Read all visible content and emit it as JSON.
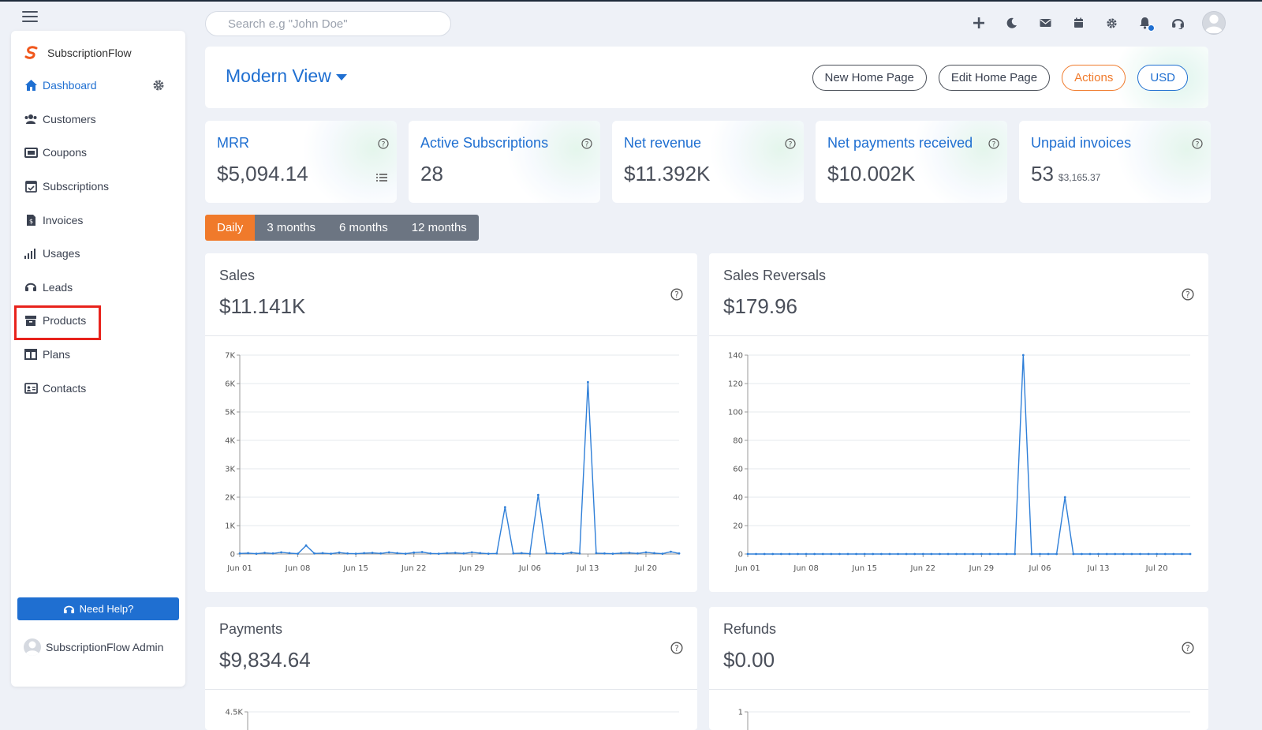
{
  "search": {
    "placeholder": "Search e.g \"John Doe\""
  },
  "top_icons": [
    "plus-icon",
    "moon-icon",
    "mail-icon",
    "calendar-icon",
    "gear-icon",
    "bell-icon",
    "headset-icon",
    "user-avatar"
  ],
  "sidebar": {
    "brand": "SubscriptionFlow",
    "items": [
      {
        "label": "Dashboard",
        "icon": "home-icon",
        "active": true
      },
      {
        "label": "Customers",
        "icon": "users-icon"
      },
      {
        "label": "Coupons",
        "icon": "ticket-icon"
      },
      {
        "label": "Subscriptions",
        "icon": "calendar-check-icon"
      },
      {
        "label": "Invoices",
        "icon": "invoice-icon"
      },
      {
        "label": "Usages",
        "icon": "signal-icon"
      },
      {
        "label": "Leads",
        "icon": "headset-icon"
      },
      {
        "label": "Products",
        "icon": "archive-icon",
        "highlighted": true
      },
      {
        "label": "Plans",
        "icon": "columns-icon"
      },
      {
        "label": "Contacts",
        "icon": "contact-card-icon"
      }
    ],
    "help_label": "Need Help?",
    "admin_label": "SubscriptionFlow Admin"
  },
  "header": {
    "view_title": "Modern View",
    "buttons": [
      "New Home Page",
      "Edit Home Page",
      "Actions",
      "USD"
    ]
  },
  "kpis": [
    {
      "title": "MRR",
      "value": "$5,094.14",
      "sub": ""
    },
    {
      "title": "Active Subscriptions",
      "value": "28",
      "sub": ""
    },
    {
      "title": "Net revenue",
      "value": "$11.392K",
      "sub": ""
    },
    {
      "title": "Net payments received",
      "value": "$10.002K",
      "sub": ""
    },
    {
      "title": "Unpaid invoices",
      "value": "53",
      "sub": "$3,165.37"
    }
  ],
  "ranges": [
    "Daily",
    "3 months",
    "6 months",
    "12 months"
  ],
  "cards": {
    "sales": {
      "title": "Sales",
      "value": "$11.141K"
    },
    "reversals": {
      "title": "Sales Reversals",
      "value": "$179.96"
    },
    "payments": {
      "title": "Payments",
      "value": "$9,834.64"
    },
    "refunds": {
      "title": "Refunds",
      "value": "$0.00"
    }
  },
  "colors": {
    "accent": "#1f6fd1",
    "orange": "#f07a2b",
    "highlight": "#e8231c"
  },
  "chart_data": [
    {
      "type": "line",
      "x_ticks": [
        "Jun 01",
        "Jun 08",
        "Jun 15",
        "Jun 22",
        "Jun 29",
        "Jul 06",
        "Jul 13",
        "Jul 20"
      ],
      "y_ticks": [
        "0",
        "1K",
        "2K",
        "3K",
        "4K",
        "5K",
        "6K",
        "7K"
      ],
      "ylim": [
        0,
        7000
      ],
      "x": [
        "Jun 01",
        "Jun 02",
        "Jun 03",
        "Jun 04",
        "Jun 05",
        "Jun 06",
        "Jun 07",
        "Jun 08",
        "Jun 09",
        "Jun 10",
        "Jun 11",
        "Jun 12",
        "Jun 13",
        "Jun 14",
        "Jun 15",
        "Jun 16",
        "Jun 17",
        "Jun 18",
        "Jun 19",
        "Jun 20",
        "Jun 21",
        "Jun 22",
        "Jun 23",
        "Jun 24",
        "Jun 25",
        "Jun 26",
        "Jun 27",
        "Jun 28",
        "Jun 29",
        "Jun 30",
        "Jul 01",
        "Jul 02",
        "Jul 03",
        "Jul 04",
        "Jul 05",
        "Jul 06",
        "Jul 07",
        "Jul 08",
        "Jul 09",
        "Jul 10",
        "Jul 11",
        "Jul 12",
        "Jul 13",
        "Jul 14",
        "Jul 15",
        "Jul 16",
        "Jul 17",
        "Jul 18",
        "Jul 19",
        "Jul 20",
        "Jul 21",
        "Jul 22",
        "Jul 23",
        "Jul 24"
      ],
      "values": [
        20,
        30,
        10,
        40,
        20,
        60,
        30,
        10,
        300,
        20,
        30,
        10,
        50,
        20,
        10,
        30,
        40,
        20,
        60,
        30,
        10,
        50,
        70,
        20,
        10,
        30,
        40,
        20,
        60,
        30,
        10,
        20,
        1650,
        20,
        30,
        10,
        2080,
        30,
        20,
        10,
        50,
        20,
        6050,
        30,
        20,
        10,
        30,
        40,
        20,
        60,
        30,
        10,
        80,
        20
      ]
    },
    {
      "type": "line",
      "x_ticks": [
        "Jun 01",
        "Jun 08",
        "Jun 15",
        "Jun 22",
        "Jun 29",
        "Jul 06",
        "Jul 13",
        "Jul 20"
      ],
      "y_ticks": [
        "0",
        "20",
        "40",
        "60",
        "80",
        "100",
        "120",
        "140"
      ],
      "ylim": [
        0,
        140
      ],
      "x": [
        "Jun 01",
        "Jun 02",
        "Jun 03",
        "Jun 04",
        "Jun 05",
        "Jun 06",
        "Jun 07",
        "Jun 08",
        "Jun 09",
        "Jun 10",
        "Jun 11",
        "Jun 12",
        "Jun 13",
        "Jun 14",
        "Jun 15",
        "Jun 16",
        "Jun 17",
        "Jun 18",
        "Jun 19",
        "Jun 20",
        "Jun 21",
        "Jun 22",
        "Jun 23",
        "Jun 24",
        "Jun 25",
        "Jun 26",
        "Jun 27",
        "Jun 28",
        "Jun 29",
        "Jun 30",
        "Jul 01",
        "Jul 02",
        "Jul 03",
        "Jul 04",
        "Jul 05",
        "Jul 06",
        "Jul 07",
        "Jul 08",
        "Jul 09",
        "Jul 10",
        "Jul 11",
        "Jul 12",
        "Jul 13",
        "Jul 14",
        "Jul 15",
        "Jul 16",
        "Jul 17",
        "Jul 18",
        "Jul 19",
        "Jul 20",
        "Jul 21",
        "Jul 22",
        "Jul 23",
        "Jul 24"
      ],
      "values": [
        0,
        0,
        0,
        0,
        0,
        0,
        0,
        0,
        0,
        0,
        0,
        0,
        0,
        0,
        0,
        0,
        0,
        0,
        0,
        0,
        0,
        0,
        0,
        0,
        0,
        0,
        0,
        0,
        0,
        0,
        0,
        0,
        0,
        140,
        0,
        0,
        0,
        0,
        40,
        0,
        0,
        0,
        0,
        0,
        0,
        0,
        0,
        0,
        0,
        0,
        0,
        0,
        0,
        0
      ]
    },
    {
      "type": "line",
      "y_ticks": [
        "4.5K"
      ]
    },
    {
      "type": "line",
      "y_ticks": [
        "1"
      ]
    }
  ]
}
